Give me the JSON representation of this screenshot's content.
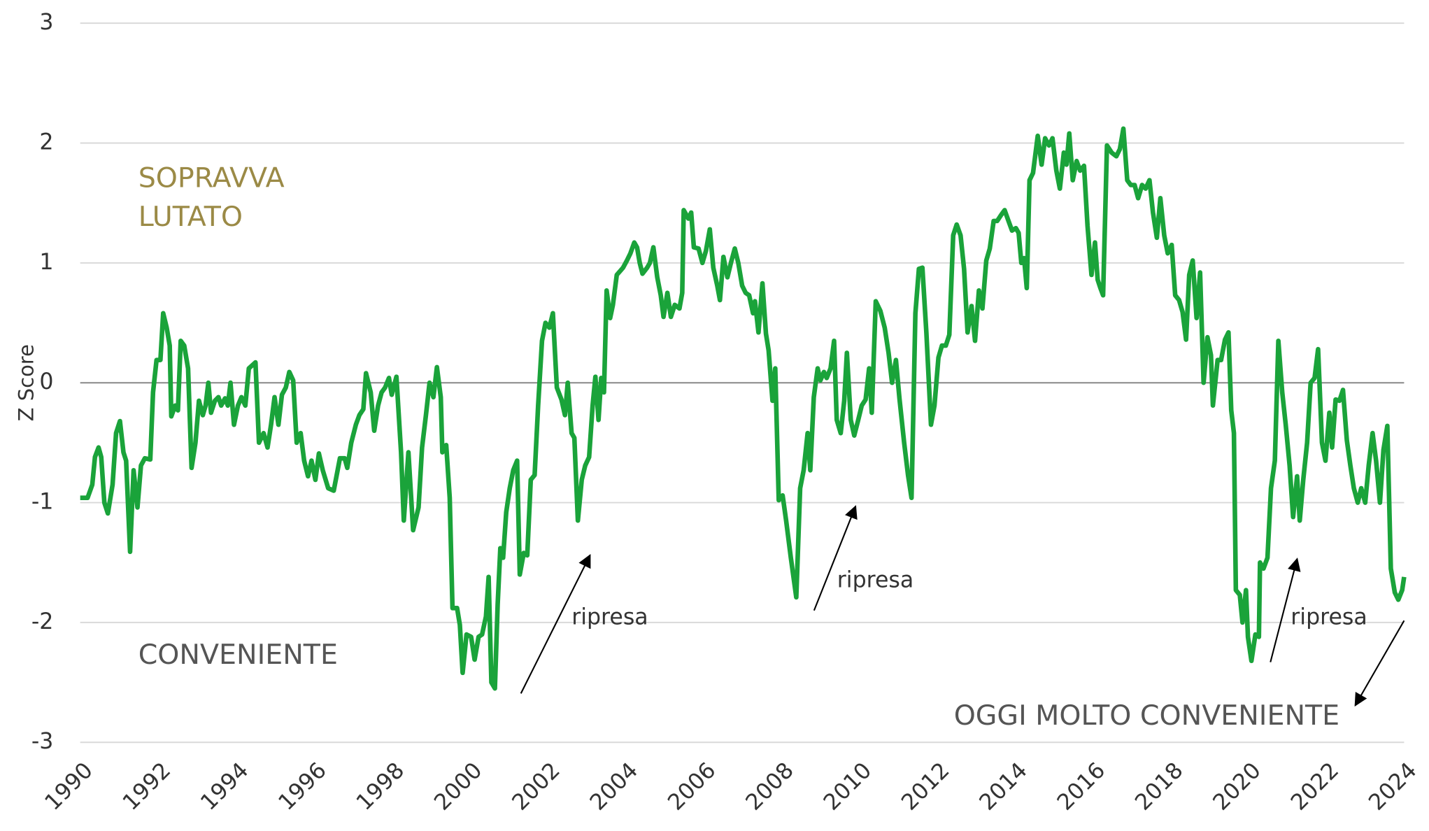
{
  "chart_data": {
    "type": "line",
    "y_label": "Z Score",
    "x": [
      1990.0,
      1990.19,
      1990.31,
      1990.38,
      1990.47,
      1990.54,
      1990.62,
      1990.71,
      1990.83,
      1990.92,
      1991.02,
      1991.11,
      1991.18,
      1991.28,
      1991.37,
      1991.47,
      1991.56,
      1991.66,
      1991.8,
      1991.87,
      1991.96,
      1992.06,
      1992.13,
      1992.22,
      1992.3,
      1992.34,
      1992.44,
      1992.51,
      1992.58,
      1992.67,
      1992.77,
      1992.86,
      1992.96,
      1993.05,
      1993.15,
      1993.22,
      1993.29,
      1993.36,
      1993.46,
      1993.55,
      1993.62,
      1993.72,
      1993.79,
      1993.86,
      1993.95,
      1994.05,
      1994.14,
      1994.24,
      1994.33,
      1994.5,
      1994.59,
      1994.71,
      1994.81,
      1994.9,
      1994.99,
      1995.09,
      1995.18,
      1995.28,
      1995.37,
      1995.47,
      1995.56,
      1995.66,
      1995.75,
      1995.85,
      1995.94,
      1996.04,
      1996.13,
      1996.23,
      1996.37,
      1996.51,
      1996.67,
      1996.79,
      1996.86,
      1996.96,
      1997.08,
      1997.17,
      1997.27,
      1997.34,
      1997.46,
      1997.55,
      1997.65,
      1997.74,
      1997.83,
      1997.93,
      1998.0,
      1998.12,
      1998.24,
      1998.31,
      1998.43,
      1998.55,
      1998.69,
      1998.78,
      1998.88,
      1998.97,
      1999.07,
      1999.16,
      1999.26,
      1999.3,
      1999.4,
      1999.49,
      1999.56,
      1999.68,
      1999.75,
      1999.82,
      1999.92,
      2000.04,
      2000.13,
      2000.23,
      2000.32,
      2000.42,
      2000.49,
      2000.56,
      2000.65,
      2000.72,
      2000.79,
      2000.86,
      2000.94,
      2001.03,
      2001.12,
      2001.22,
      2001.29,
      2001.39,
      2001.48,
      2001.57,
      2001.67,
      2001.76,
      2001.86,
      2001.95,
      2002.05,
      2002.14,
      2002.24,
      2002.36,
      2002.45,
      2002.52,
      2002.62,
      2002.69,
      2002.78,
      2002.88,
      2002.97,
      2003.07,
      2003.16,
      2003.23,
      2003.31,
      2003.38,
      2003.45,
      2003.52,
      2003.61,
      2003.68,
      2003.78,
      2003.94,
      2004.04,
      2004.13,
      2004.23,
      2004.3,
      2004.37,
      2004.44,
      2004.56,
      2004.63,
      2004.72,
      2004.82,
      2004.91,
      2004.98,
      2005.08,
      2005.17,
      2005.27,
      2005.39,
      2005.46,
      2005.5,
      2005.62,
      2005.69,
      2005.76,
      2005.88,
      2005.98,
      2006.07,
      2006.17,
      2006.26,
      2006.36,
      2006.43,
      2006.52,
      2006.62,
      2006.71,
      2006.81,
      2006.9,
      2007.0,
      2007.09,
      2007.18,
      2007.28,
      2007.33,
      2007.42,
      2007.52,
      2007.61,
      2007.68,
      2007.78,
      2007.85,
      2007.94,
      2008.04,
      2008.13,
      2008.25,
      2008.39,
      2008.49,
      2008.58,
      2008.68,
      2008.75,
      2008.84,
      2008.94,
      2009.01,
      2009.1,
      2009.17,
      2009.27,
      2009.36,
      2009.43,
      2009.53,
      2009.62,
      2009.69,
      2009.79,
      2009.88,
      2009.98,
      2010.07,
      2010.17,
      2010.26,
      2010.33,
      2010.43,
      2010.55,
      2010.66,
      2010.76,
      2010.85,
      2010.95,
      2011.04,
      2011.16,
      2011.26,
      2011.35,
      2011.45,
      2011.54,
      2011.63,
      2011.73,
      2011.85,
      2011.94,
      2012.04,
      2012.13,
      2012.23,
      2012.32,
      2012.42,
      2012.51,
      2012.61,
      2012.7,
      2012.79,
      2012.89,
      2012.98,
      2013.08,
      2013.17,
      2013.27,
      2013.36,
      2013.46,
      2013.55,
      2013.65,
      2013.74,
      2013.84,
      2013.93,
      2014.03,
      2014.1,
      2014.17,
      2014.24,
      2014.31,
      2014.38,
      2014.47,
      2014.59,
      2014.69,
      2014.78,
      2014.88,
      2014.97,
      2015.07,
      2015.16,
      2015.26,
      2015.33,
      2015.4,
      2015.49,
      2015.59,
      2015.68,
      2015.78,
      2015.87,
      2015.97,
      2016.06,
      2016.13,
      2016.2,
      2016.27,
      2016.37,
      2016.49,
      2016.61,
      2016.7,
      2016.79,
      2016.89,
      2016.98,
      2017.08,
      2017.17,
      2017.27,
      2017.36,
      2017.46,
      2017.55,
      2017.65,
      2017.74,
      2017.84,
      2017.93,
      2018.03,
      2018.12,
      2018.22,
      2018.31,
      2018.4,
      2018.48,
      2018.57,
      2018.67,
      2018.76,
      2018.85,
      2018.95,
      2019.04,
      2019.09,
      2019.21,
      2019.3,
      2019.4,
      2019.49,
      2019.56,
      2019.63,
      2019.68,
      2019.78,
      2019.85,
      2019.94,
      2019.99,
      2020.08,
      2020.18,
      2020.27,
      2020.3,
      2020.39,
      2020.49,
      2020.58,
      2020.68,
      2020.77,
      2020.87,
      2020.96,
      2021.06,
      2021.15,
      2021.25,
      2021.32,
      2021.41,
      2021.51,
      2021.6,
      2021.7,
      2021.79,
      2021.89,
      2021.98,
      2022.08,
      2022.15,
      2022.24,
      2022.34,
      2022.43,
      2022.53,
      2022.62,
      2022.71,
      2022.81,
      2022.9,
      2023.0,
      2023.09,
      2023.19,
      2023.28,
      2023.38,
      2023.47,
      2023.57,
      2023.66,
      2023.76,
      2023.85,
      2023.95,
      2024.0
    ],
    "series": [
      {
        "name": "Z Score",
        "color": "#1aa33a",
        "values": [
          -0.96,
          -0.96,
          -0.85,
          -0.62,
          -0.54,
          -0.62,
          -1.0,
          -1.09,
          -0.85,
          -0.42,
          -0.32,
          -0.58,
          -0.65,
          -1.41,
          -0.73,
          -1.04,
          -0.69,
          -0.63,
          -0.64,
          -0.08,
          0.19,
          0.19,
          0.58,
          0.46,
          0.31,
          -0.28,
          -0.19,
          -0.23,
          0.35,
          0.31,
          0.12,
          -0.71,
          -0.5,
          -0.15,
          -0.27,
          -0.19,
          0.0,
          -0.25,
          -0.15,
          -0.12,
          -0.19,
          -0.13,
          -0.19,
          0.0,
          -0.35,
          -0.19,
          -0.12,
          -0.19,
          0.12,
          0.17,
          -0.5,
          -0.42,
          -0.54,
          -0.35,
          -0.12,
          -0.35,
          -0.1,
          -0.04,
          0.09,
          0.02,
          -0.5,
          -0.42,
          -0.65,
          -0.78,
          -0.65,
          -0.81,
          -0.59,
          -0.73,
          -0.88,
          -0.9,
          -0.63,
          -0.63,
          -0.71,
          -0.5,
          -0.35,
          -0.27,
          -0.22,
          0.08,
          -0.08,
          -0.4,
          -0.19,
          -0.08,
          -0.04,
          0.04,
          -0.1,
          0.05,
          -0.58,
          -1.15,
          -0.58,
          -1.23,
          -1.04,
          -0.54,
          -0.27,
          0.0,
          -0.12,
          0.13,
          -0.12,
          -0.58,
          -0.52,
          -0.96,
          -1.88,
          -1.88,
          -2.02,
          -2.42,
          -2.1,
          -2.12,
          -2.31,
          -2.12,
          -2.1,
          -1.95,
          -1.62,
          -2.5,
          -2.55,
          -1.85,
          -1.38,
          -1.46,
          -1.08,
          -0.88,
          -0.73,
          -0.65,
          -1.6,
          -1.42,
          -1.44,
          -0.81,
          -0.77,
          -0.19,
          0.35,
          0.5,
          0.46,
          0.58,
          -0.04,
          -0.14,
          -0.27,
          0.0,
          -0.42,
          -0.46,
          -1.15,
          -0.81,
          -0.69,
          -0.62,
          -0.19,
          0.05,
          -0.31,
          0.04,
          -0.08,
          0.77,
          0.54,
          0.65,
          0.9,
          0.96,
          1.02,
          1.08,
          1.17,
          1.13,
          1.0,
          0.91,
          0.96,
          1.0,
          1.13,
          0.88,
          0.73,
          0.55,
          0.75,
          0.55,
          0.65,
          0.62,
          0.75,
          1.44,
          1.37,
          1.42,
          1.13,
          1.12,
          1.0,
          1.1,
          1.28,
          0.96,
          0.81,
          0.69,
          1.05,
          0.88,
          1.0,
          1.12,
          1.0,
          0.81,
          0.75,
          0.73,
          0.58,
          0.68,
          0.42,
          0.83,
          0.41,
          0.27,
          -0.15,
          0.12,
          -0.98,
          -0.94,
          -1.15,
          -1.46,
          -1.79,
          -0.88,
          -0.73,
          -0.42,
          -0.73,
          -0.12,
          0.12,
          0.02,
          0.09,
          0.04,
          0.12,
          0.35,
          -0.31,
          -0.42,
          -0.15,
          0.25,
          -0.31,
          -0.44,
          -0.31,
          -0.19,
          -0.14,
          0.12,
          -0.25,
          0.68,
          0.6,
          0.46,
          0.25,
          0.0,
          0.19,
          -0.13,
          -0.5,
          -0.77,
          -0.96,
          0.58,
          0.95,
          0.96,
          0.42,
          -0.35,
          -0.19,
          0.21,
          0.31,
          0.31,
          0.4,
          1.23,
          1.32,
          1.23,
          0.95,
          0.42,
          0.64,
          0.35,
          0.77,
          0.62,
          1.02,
          1.12,
          1.35,
          1.35,
          1.4,
          1.44,
          1.35,
          1.27,
          1.29,
          1.25,
          1.0,
          1.04,
          0.79,
          1.69,
          1.75,
          2.06,
          1.82,
          2.04,
          1.98,
          2.04,
          1.77,
          1.62,
          1.92,
          1.82,
          2.08,
          1.69,
          1.85,
          1.77,
          1.81,
          1.31,
          0.9,
          1.17,
          0.86,
          0.79,
          0.73,
          1.98,
          1.92,
          1.89,
          1.95,
          2.12,
          1.69,
          1.65,
          1.65,
          1.54,
          1.65,
          1.62,
          1.69,
          1.42,
          1.21,
          1.54,
          1.23,
          1.08,
          1.15,
          0.73,
          0.69,
          0.59,
          0.36,
          0.9,
          1.02,
          0.54,
          0.92,
          0.0,
          0.38,
          0.23,
          -0.19,
          0.19,
          0.19,
          0.36,
          0.42,
          -0.23,
          -0.42,
          -1.73,
          -1.77,
          -2.0,
          -1.73,
          -2.12,
          -2.32,
          -2.1,
          -2.12,
          -1.5,
          -1.55,
          -1.46,
          -0.88,
          -0.65,
          0.35,
          -0.08,
          -0.35,
          -0.69,
          -1.12,
          -0.78,
          -1.15,
          -0.81,
          -0.5,
          0.0,
          0.04,
          0.28,
          -0.5,
          -0.65,
          -0.25,
          -0.54,
          -0.14,
          -0.15,
          -0.06,
          -0.48,
          -0.69,
          -0.88,
          -1.0,
          -0.88,
          -1.0,
          -0.69,
          -0.42,
          -0.65,
          -1.0,
          -0.56,
          -0.36,
          -1.55,
          -1.75,
          -1.81,
          -1.73,
          -1.62
        ]
      }
    ],
    "xlim": [
      1990,
      2024
    ],
    "xticks": [
      1990,
      1992,
      1994,
      1996,
      1998,
      2000,
      2002,
      2004,
      2006,
      2008,
      2010,
      2012,
      2014,
      2016,
      2018,
      2020,
      2022,
      2024
    ],
    "ylim": [
      -3,
      3
    ],
    "yticks": [
      -3,
      -2,
      -1,
      0,
      1,
      2,
      3
    ],
    "grid": true,
    "annotations": [
      "SOPRAVVA",
      "LUTATO",
      "CONVENIENTE",
      "ripresa",
      "ripresa",
      "ripresa",
      "OGGI MOLTO CONVENIENTE"
    ]
  }
}
